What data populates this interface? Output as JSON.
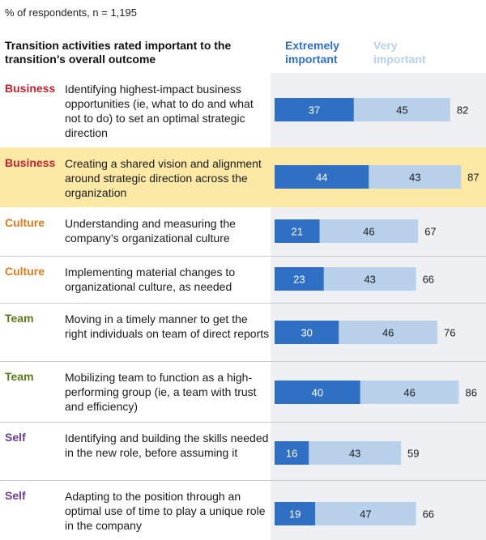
{
  "subtitle": "% of respondents,  n = 1,195",
  "header": {
    "title": "Transition activities rated important to the transition’s overall outcome",
    "legend_extremely": "Extremely important",
    "legend_very": "Very important"
  },
  "colors": {
    "extremely": "#2f6fc4",
    "very": "#b8d0ea",
    "highlight": "#fde9a6",
    "panel": "#eef0f3",
    "Business": "#c8202f",
    "Culture": "#e07b1a",
    "Team": "#5c7a1a",
    "Self": "#6a3d8f"
  },
  "rows": [
    {
      "category": "Business",
      "text": "Identifying highest-impact business opportunities (ie, what to do and what not to do) to set an optimal strategic direction",
      "highlight": false
    },
    {
      "category": "Business",
      "text": "Creating a shared vision and alignment around strategic direction across the organization",
      "highlight": true
    },
    {
      "category": "Culture",
      "text": "Understanding and measuring the company’s organizational culture",
      "highlight": false
    },
    {
      "category": "Culture",
      "text": "Implementing material changes to organizational culture, as needed",
      "highlight": false
    },
    {
      "category": "Team",
      "text": "Moving in a timely manner to get the right individuals on team of direct reports",
      "highlight": false
    },
    {
      "category": "Team",
      "text": "Mobilizing team to function as a high-performing group (ie, a team with trust and efficiency)",
      "highlight": false
    },
    {
      "category": "Self",
      "text": "Identifying and building the skills needed in the new role, before assuming it",
      "highlight": false
    },
    {
      "category": "Self",
      "text": "Adapting to the position through an optimal use of time to play a unique role in the company",
      "highlight": false
    }
  ],
  "chart_data": {
    "type": "bar",
    "orientation": "horizontal",
    "stacked": true,
    "title": "Transition activities rated important to the transition’s overall outcome",
    "subtitle": "% of respondents,  n = 1,195",
    "categories": [
      "Identifying highest-impact business opportunities (ie, what to do and what not to do) to set an optimal strategic direction",
      "Creating a shared vision and alignment around strategic direction across the organization",
      "Understanding and measuring the company’s organizational culture",
      "Implementing material changes to organizational culture, as needed",
      "Moving in a timely manner to get the right individuals on team of direct reports",
      "Mobilizing team to function as a high-performing group (ie, a team with trust and efficiency)",
      "Identifying and building the skills needed in the new role, before assuming it",
      "Adapting to the position through an optimal use of time to play a unique role in the company"
    ],
    "series": [
      {
        "name": "Extremely important",
        "values": [
          37,
          44,
          21,
          23,
          30,
          40,
          16,
          19
        ]
      },
      {
        "name": "Very important",
        "values": [
          45,
          43,
          46,
          43,
          46,
          46,
          43,
          47
        ]
      }
    ],
    "totals": [
      82,
      87,
      67,
      66,
      76,
      86,
      59,
      66
    ],
    "legend": "top"
  }
}
